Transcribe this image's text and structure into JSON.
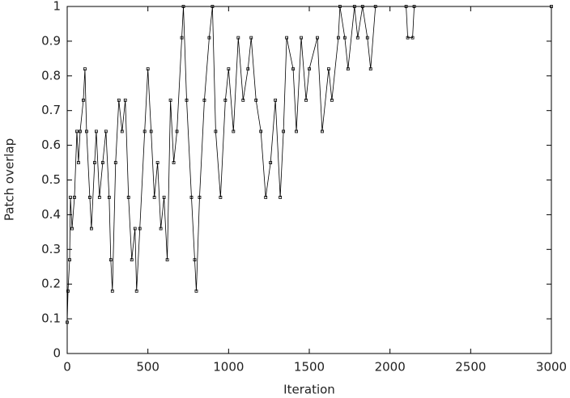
{
  "chart_data": {
    "type": "line",
    "xlabel": "Iteration",
    "ylabel": "Patch overlap",
    "x": [
      0,
      5,
      15,
      20,
      30,
      45,
      60,
      70,
      80,
      100,
      110,
      120,
      140,
      150,
      170,
      180,
      200,
      220,
      240,
      260,
      270,
      280,
      300,
      320,
      340,
      360,
      380,
      400,
      420,
      430,
      450,
      480,
      500,
      520,
      540,
      560,
      580,
      600,
      620,
      640,
      660,
      680,
      710,
      720,
      740,
      770,
      790,
      800,
      820,
      850,
      880,
      900,
      920,
      950,
      980,
      1000,
      1030,
      1060,
      1090,
      1120,
      1140,
      1170,
      1200,
      1230,
      1260,
      1290,
      1320,
      1340,
      1360,
      1400,
      1420,
      1450,
      1480,
      1500,
      1550,
      1580,
      1620,
      1640,
      1680,
      1690,
      1720,
      1740,
      1780,
      1800,
      1830,
      1860,
      1880,
      1910,
      2100,
      2110,
      2140,
      2150,
      3000
    ],
    "series": [
      {
        "name": null,
        "color": "#000000",
        "values": [
          0.09,
          0.18,
          0.27,
          0.45,
          0.36,
          0.45,
          0.64,
          0.55,
          0.64,
          0.73,
          0.82,
          0.64,
          0.45,
          0.36,
          0.55,
          0.64,
          0.45,
          0.55,
          0.64,
          0.45,
          0.27,
          0.18,
          0.55,
          0.73,
          0.64,
          0.73,
          0.45,
          0.27,
          0.36,
          0.18,
          0.36,
          0.64,
          0.82,
          0.64,
          0.45,
          0.55,
          0.36,
          0.45,
          0.27,
          0.73,
          0.55,
          0.64,
          0.91,
          1,
          0.73,
          0.45,
          0.27,
          0.18,
          0.45,
          0.73,
          0.91,
          1,
          0.64,
          0.45,
          0.73,
          0.82,
          0.64,
          0.91,
          0.73,
          0.82,
          0.91,
          0.73,
          0.64,
          0.45,
          0.55,
          0.73,
          0.45,
          0.64,
          0.91,
          0.82,
          0.64,
          0.91,
          0.73,
          0.82,
          0.91,
          0.64,
          0.82,
          0.73,
          0.91,
          1,
          0.91,
          0.82,
          1,
          0.91,
          1,
          0.91,
          0.82,
          1,
          1,
          0.91,
          0.91,
          1,
          1
        ]
      }
    ],
    "xlim": [
      0,
      3000
    ],
    "xticks": [
      0,
      500,
      1000,
      1500,
      2000,
      2500,
      3000
    ],
    "ylim": [
      0,
      1
    ],
    "yticks": [
      0,
      0.1,
      0.2,
      0.3,
      0.4,
      0.5,
      0.6,
      0.7,
      0.8,
      0.9,
      1
    ]
  }
}
